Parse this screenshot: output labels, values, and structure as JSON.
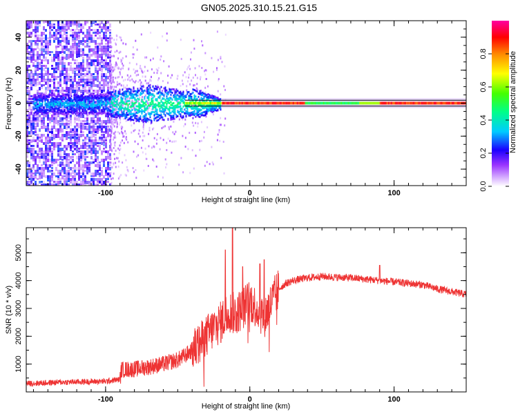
{
  "title": "GN05.2025.310.15.21.G15",
  "chart_data": [
    {
      "type": "heatmap",
      "title": "GN05.2025.310.15.21.G15",
      "xlabel": "Height of straight line (km)",
      "ylabel": "Frequency (Hz)",
      "xlim": [
        -155,
        150
      ],
      "ylim": [
        -50,
        50
      ],
      "x_ticks": [
        -100,
        0,
        100
      ],
      "y_ticks": [
        -40,
        -20,
        0,
        20,
        40
      ],
      "x_tick_labels": [
        "-100",
        "0",
        "100"
      ],
      "y_tick_labels": [
        "-40",
        "-20",
        "0",
        "20",
        "40"
      ],
      "colorbar": {
        "label": "Normalized spectral amplitude",
        "range": [
          0,
          1
        ],
        "ticks": [
          0,
          0.2,
          0.4,
          0.6,
          0.8
        ],
        "tick_labels": [
          "0.0",
          "0.2",
          "0.4",
          "0.6",
          "0.8"
        ],
        "colors": [
          "#ffffff",
          "#d9b3ff",
          "#7f00ff",
          "#0000ff",
          "#00ffff",
          "#00ff00",
          "#ffff00",
          "#ff8000",
          "#ff0000",
          "#ff00a0"
        ]
      },
      "regions": [
        {
          "x": [
            -155,
            -97
          ],
          "y": [
            -50,
            50
          ],
          "amplitude": 0.15,
          "density": "dense scatter"
        },
        {
          "x": [
            -97,
            -40
          ],
          "y": [
            -12,
            12
          ],
          "amplitude": 0.4,
          "density": "blob"
        },
        {
          "x": [
            -40,
            150
          ],
          "y": [
            -1.5,
            1.5
          ],
          "amplitude": 0.85,
          "density": "line"
        }
      ]
    },
    {
      "type": "line",
      "xlabel": "Height of straight line (km)",
      "ylabel": "SNR (10 * v/v)",
      "xlim": [
        -155,
        150
      ],
      "ylim": [
        0,
        5900
      ],
      "x_ticks": [
        -100,
        0,
        100
      ],
      "y_ticks": [
        1000,
        2000,
        3000,
        4000,
        5000
      ],
      "x_tick_labels": [
        "-100",
        "0",
        "100"
      ],
      "y_tick_labels": [
        "1000",
        "2000",
        "3000",
        "4000",
        "5000"
      ],
      "color": "#ee3333",
      "series": [
        {
          "x": [
            -155,
            -130,
            -100,
            -90,
            -89,
            -80,
            -70,
            -60,
            -50,
            -45,
            -40,
            -35,
            -30,
            -25,
            -20,
            -15,
            -10,
            -5,
            0,
            5,
            10,
            15,
            20,
            25,
            30,
            35,
            40,
            50,
            60,
            70,
            80,
            90,
            100,
            110,
            120,
            130,
            140,
            150
          ],
          "values": [
            300,
            350,
            380,
            450,
            800,
            820,
            900,
            1000,
            1150,
            1300,
            1500,
            1700,
            2000,
            2300,
            2500,
            2900,
            2800,
            3000,
            3300,
            3000,
            2700,
            3200,
            3700,
            3900,
            4000,
            4050,
            4100,
            4150,
            4120,
            4100,
            4050,
            4000,
            3950,
            3900,
            3850,
            3700,
            3600,
            3500
          ]
        }
      ],
      "noise": 300,
      "spikes": [
        {
          "x": -12,
          "value": 5900
        },
        {
          "x": -17,
          "value": 5100
        },
        {
          "x": 10,
          "value": 4750
        },
        {
          "x": 7,
          "value": 4600
        },
        {
          "x": -5,
          "value": 4500
        },
        {
          "x": 90,
          "value": 4550
        }
      ]
    }
  ]
}
